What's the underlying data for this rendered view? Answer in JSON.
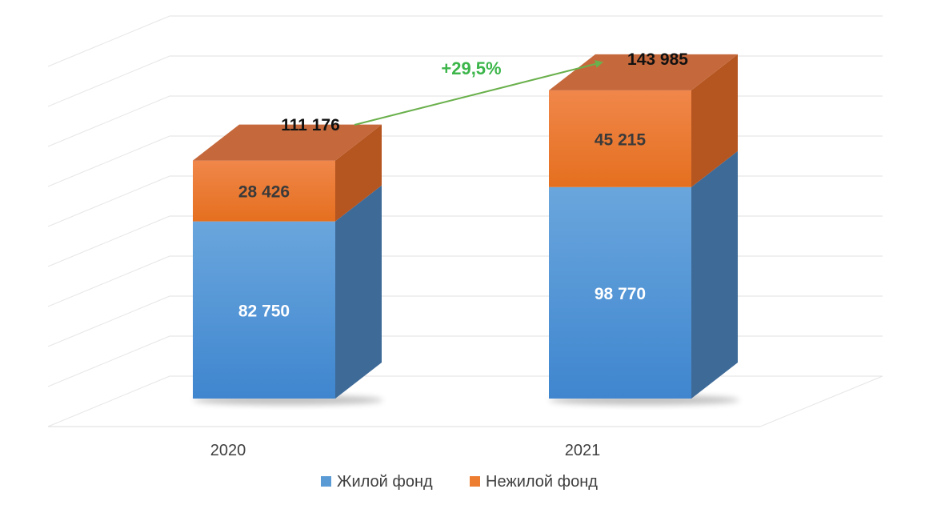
{
  "chart_data": {
    "type": "bar",
    "stacked": true,
    "three_d": true,
    "categories": [
      "2020",
      "2021"
    ],
    "series": [
      {
        "name": "Жилой фонд",
        "values": [
          82750,
          98770
        ],
        "color": "#5b9bd5"
      },
      {
        "name": "Нежилой фонд",
        "values": [
          28426,
          45215
        ],
        "color": "#ed7d31"
      }
    ],
    "value_labels": [
      [
        "82 750",
        "98 770"
      ],
      [
        "28 426",
        "45 215"
      ]
    ],
    "totals": [
      111176,
      143985
    ],
    "total_labels": [
      "111 176",
      "143 985"
    ],
    "growth_annotation": "+29,5%",
    "growth_color": "#3cb54a",
    "ylim": [
      0,
      160000
    ],
    "grid": true,
    "legend_position": "bottom",
    "title": "",
    "xlabel": "",
    "ylabel": ""
  }
}
